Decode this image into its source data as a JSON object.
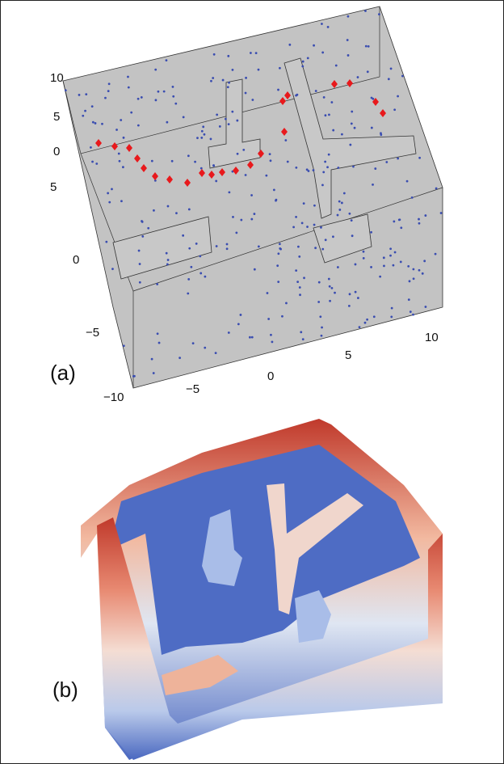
{
  "panels": [
    {
      "label": "(a)",
      "z_ticks": [
        "10",
        "5",
        "0"
      ],
      "y_ticks": [
        "5",
        "0",
        "−5",
        "−10"
      ],
      "x_ticks": [
        "−5",
        "0",
        "5",
        "10"
      ]
    },
    {
      "label": "(b)"
    }
  ]
}
